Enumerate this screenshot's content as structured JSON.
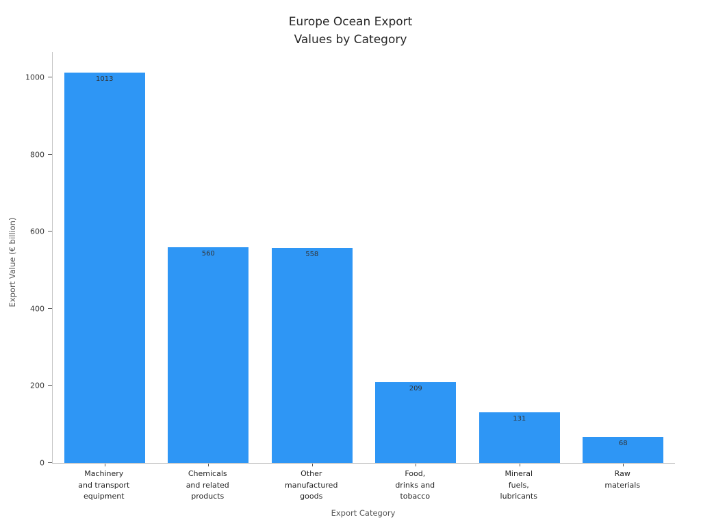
{
  "chart_data": {
    "type": "bar",
    "title": "Europe Ocean Export\nValues by Category",
    "xlabel": "Export Category",
    "ylabel": "Export Value (€ billion)",
    "categories": [
      "Machinery\nand transport\nequipment",
      "Chemicals\nand related\nproducts",
      "Other\nmanufactured\ngoods",
      "Food,\ndrinks and\ntobacco",
      "Mineral\nfuels,\nlubricants",
      "Raw\nmaterials"
    ],
    "values": [
      1013,
      560,
      558,
      209,
      131,
      68
    ],
    "yticks": [
      0,
      200,
      400,
      600,
      800,
      1000
    ],
    "ylim": [
      0,
      1066
    ],
    "bar_color": "#2E96F5",
    "grid": false,
    "legend": null,
    "value_labels": true
  }
}
